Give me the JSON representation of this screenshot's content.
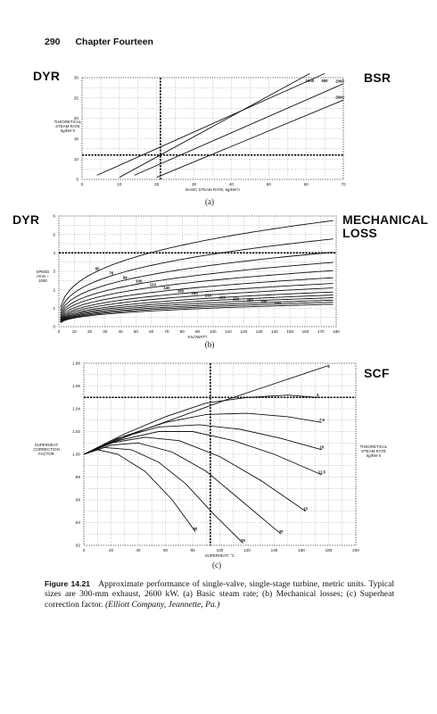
{
  "page": {
    "number": "290",
    "chapter": "Chapter Fourteen"
  },
  "caption": {
    "label": "Figure 14.21",
    "text": "Approximate performance of single-valve, single-stage turbine, metric units. Typical sizes are 300-mm exhaust, 2600 kW. (a) Basic steam rate; (b) Mechanical losses; (c) Superheat correction factor.",
    "source": "(Elliott Company, Jeannette, Pa.)"
  },
  "chart_data": [
    {
      "id": "a",
      "type": "line",
      "sublabel": "(a)",
      "left_tag": "DYR",
      "right_tag": "BSR",
      "xlabel": "BASIC STEAM RATE, kg/kW·h",
      "ylabel": "THEORETICAL STEAM RATE kg/kW·h",
      "xlim": [
        0,
        70
      ],
      "ylim": [
        5,
        30
      ],
      "xticks": [
        "0",
        "10",
        "20",
        "30",
        "40",
        "50",
        "60",
        "70"
      ],
      "yticks": [
        "5",
        "10",
        "15",
        "20",
        "25",
        "30"
      ],
      "series": [
        {
          "name": "500",
          "x": [
            4,
            65
          ],
          "y": [
            6,
            31
          ]
        },
        {
          "name": "1000",
          "x": [
            10,
            61
          ],
          "y": [
            5.5,
            31
          ]
        },
        {
          "name": "2000",
          "x": [
            14,
            70
          ],
          "y": [
            6,
            28.5
          ]
        },
        {
          "name": "2600",
          "x": [
            20,
            70
          ],
          "y": [
            5.5,
            24.5
          ]
        }
      ],
      "guides": {
        "vertical_x": 21,
        "horizontal_y": 11
      },
      "grid": true
    },
    {
      "id": "b",
      "type": "line",
      "sublabel": "(b)",
      "left_tag": "DYR",
      "right_tag": "MECHANICAL LOSS",
      "xlabel": "KILOWATT",
      "ylabel": "SPEED r/min ÷ 1000",
      "xlim": [
        0,
        180
      ],
      "ylim": [
        0,
        6
      ],
      "xticks": [
        "0",
        "10",
        "20",
        "30",
        "40",
        "50",
        "60",
        "70",
        "80",
        "90",
        "100",
        "110",
        "120",
        "130",
        "140",
        "150",
        "160",
        "170",
        "180"
      ],
      "yticks": [
        "0",
        "1",
        "2",
        "3",
        "4",
        "5",
        "6"
      ],
      "series": [
        {
          "name": "60",
          "k": 5.2
        },
        {
          "name": "76",
          "k": 4.3
        },
        {
          "name": "84",
          "k": 3.65
        },
        {
          "name": "100",
          "k": 3.15
        },
        {
          "name": "120",
          "k": 2.75
        },
        {
          "name": "140",
          "k": 2.4
        },
        {
          "name": "160",
          "k": 2.12
        },
        {
          "name": "185",
          "k": 1.9
        },
        {
          "name": "210",
          "k": 1.7
        },
        {
          "name": "230",
          "k": 1.55
        },
        {
          "name": "250",
          "k": 1.42
        },
        {
          "name": "280",
          "k": 1.3
        },
        {
          "name": "300",
          "k": 1.2
        },
        {
          "name": "330",
          "k": 1.1
        }
      ],
      "guides": {
        "horizontal_y": 4
      },
      "grid": true
    },
    {
      "id": "c",
      "type": "line",
      "sublabel": "(c)",
      "right_tag": "SCF",
      "xlabel": "SUPERHEAT, °C",
      "ylabel": "SUPERHEAT CORRECTION FACTOR",
      "right_label": "THEORETICAL STEAM RATE kg/kW·h",
      "xlim": [
        0,
        200
      ],
      "ylim": [
        0.92,
        1.08
      ],
      "xticks": [
        "0",
        "20",
        "40",
        "60",
        "80",
        "100",
        "120",
        "140",
        "160",
        "180",
        "200"
      ],
      "yticks": [
        ".92",
        ".94",
        ".96",
        ".98",
        "1.00",
        "1.02",
        "1.04",
        "1.06",
        "1.08"
      ],
      "series": [
        {
          "name": "3",
          "x": [
            0,
            20,
            45,
            75,
            105,
            135,
            165,
            180
          ],
          "y": [
            1.0,
            1.01,
            1.022,
            1.035,
            1.048,
            1.06,
            1.072,
            1.078
          ]
        },
        {
          "name": "5",
          "x": [
            0,
            30,
            60,
            90,
            120,
            150,
            172
          ],
          "y": [
            1.0,
            1.018,
            1.033,
            1.045,
            1.05,
            1.052,
            1.05
          ]
        },
        {
          "name": "7.5",
          "x": [
            0,
            30,
            60,
            90,
            120,
            150,
            175
          ],
          "y": [
            1.0,
            1.016,
            1.028,
            1.035,
            1.036,
            1.033,
            1.028
          ]
        },
        {
          "name": "10",
          "x": [
            0,
            25,
            55,
            85,
            115,
            145,
            175
          ],
          "y": [
            1.0,
            1.014,
            1.024,
            1.026,
            1.022,
            1.014,
            1.004
          ]
        },
        {
          "name": "11.5",
          "x": [
            0,
            25,
            55,
            80,
            110,
            140,
            175
          ],
          "y": [
            1.0,
            1.012,
            1.02,
            1.02,
            1.012,
            1.0,
            0.982
          ]
        },
        {
          "name": "15",
          "x": [
            0,
            20,
            45,
            70,
            100,
            130,
            163
          ],
          "y": [
            1.0,
            1.01,
            1.015,
            1.012,
            0.998,
            0.977,
            0.95
          ]
        },
        {
          "name": "20",
          "x": [
            0,
            20,
            40,
            65,
            90,
            115,
            145
          ],
          "y": [
            1.0,
            1.008,
            1.01,
            1.002,
            0.985,
            0.96,
            0.93
          ]
        },
        {
          "name": "25",
          "x": [
            0,
            15,
            35,
            55,
            75,
            95,
            117
          ],
          "y": [
            1.0,
            1.006,
            1.004,
            0.993,
            0.974,
            0.948,
            0.922
          ]
        },
        {
          "name": "30",
          "x": [
            0,
            10,
            25,
            45,
            65,
            82
          ],
          "y": [
            1.0,
            1.004,
            1.0,
            0.985,
            0.96,
            0.932
          ]
        }
      ],
      "guides": {
        "vertical_x": 93,
        "horizontal_y": 1.05
      },
      "grid": true
    }
  ]
}
